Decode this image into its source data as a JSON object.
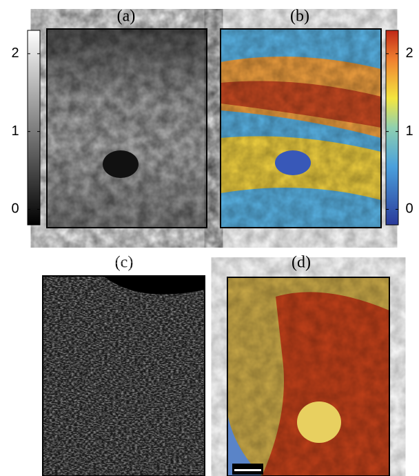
{
  "panels": [
    {
      "label": "(a)"
    },
    {
      "label": "(b)"
    },
    {
      "label": "(c)"
    },
    {
      "label": "(d)"
    }
  ],
  "colorbars": [
    {
      "ylim": [
        -0.2,
        2.3
      ],
      "yticks": [
        0,
        1,
        2
      ]
    },
    {
      "ylim": [
        -0.2,
        2.3
      ],
      "yticks": [
        0,
        1,
        2
      ]
    }
  ]
}
